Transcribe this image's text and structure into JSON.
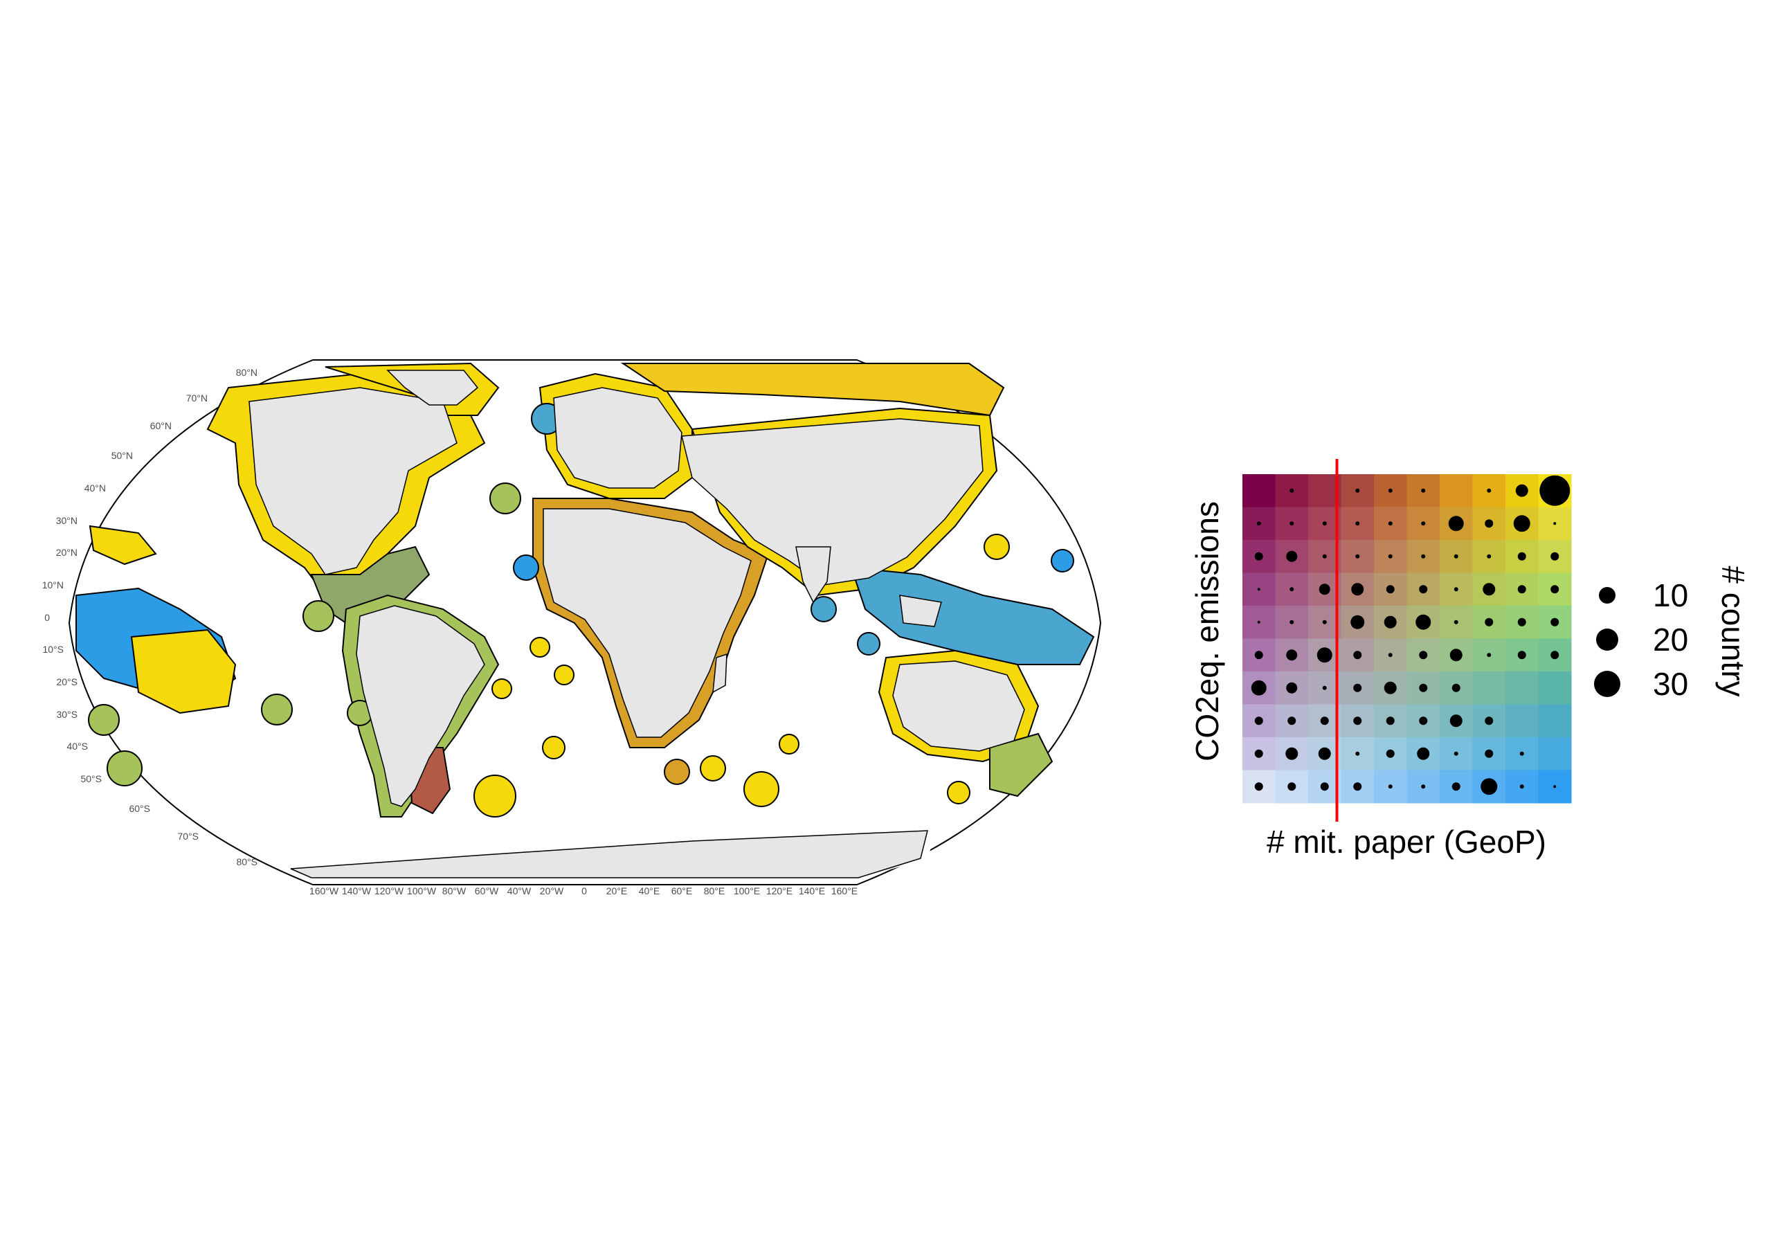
{
  "map": {
    "latitude_labels": [
      "80°N",
      "70°N",
      "60°N",
      "50°N",
      "40°N",
      "30°N",
      "20°N",
      "10°N",
      "0",
      "10°S",
      "20°S",
      "30°S",
      "40°S",
      "50°S",
      "60°S",
      "70°S",
      "80°S"
    ],
    "longitude_labels": [
      "160°W",
      "140°W",
      "120°W",
      "100°W",
      "80°W",
      "60°W",
      "40°W",
      "20°W",
      "0",
      "20°E",
      "40°E",
      "60°E",
      "80°E",
      "100°E",
      "120°E",
      "140°E",
      "160°E"
    ],
    "colors": {
      "land": "#e6e6e6",
      "coast_yellow": "#f5d90a",
      "coast_blue": "#2c9ce6",
      "coast_green": "#a6c25a",
      "coast_brown": "#b25a45"
    }
  },
  "legend": {
    "xlabel": "# mit. paper (GeoP)",
    "ylabel": "CO2eq. emissions",
    "size_title": "# country",
    "size_labels": [
      "10",
      "20",
      "30"
    ],
    "grid_colors": [
      [
        "#7b0048",
        "#8e1a48",
        "#9a2f45",
        "#a84a3e",
        "#bb6233",
        "#c8782a",
        "#d9951f",
        "#e6ae16",
        "#eccc10",
        "#f3e11c"
      ],
      [
        "#8a1a5a",
        "#9a2f5c",
        "#a8445a",
        "#b45a52",
        "#c07246",
        "#c9873c",
        "#d19d31",
        "#d8b42a",
        "#dcc728",
        "#e2da3a"
      ],
      [
        "#932f6d",
        "#a0456e",
        "#ab5a6c",
        "#b46e64",
        "#bc8458",
        "#c1984e",
        "#c5ac44",
        "#c8c03f",
        "#c8cf42",
        "#cbd84f"
      ],
      [
        "#994482",
        "#a45a82",
        "#ad6f80",
        "#b38378",
        "#b8966c",
        "#b9a863",
        "#b9ba5b",
        "#b6c858",
        "#b1d05d",
        "#add767"
      ],
      [
        "#a05b97",
        "#a86f96",
        "#ae8494",
        "#b0978c",
        "#b1a880",
        "#aeb678",
        "#a9c272",
        "#a1cb71",
        "#98cf76",
        "#90d27e"
      ],
      [
        "#a974ac",
        "#ad88ab",
        "#af9ca9",
        "#ad9ea2",
        "#aab098",
        "#a3bb91",
        "#99c28c",
        "#8dc68c",
        "#80c68f",
        "#74c494"
      ],
      [
        "#b08fbf",
        "#b1a1bd",
        "#afabbb",
        "#a6adb5",
        "#9eb4ad",
        "#93b8a7",
        "#86bba4",
        "#78bba4",
        "#69b8a6",
        "#5ab4a8"
      ],
      [
        "#bba8d2",
        "#b8b7d1",
        "#b1bfce",
        "#a5bec9",
        "#98bec4",
        "#8abec1",
        "#7bbbc0",
        "#6cb7c0",
        "#5db1c2",
        "#4eabc4"
      ],
      [
        "#c8c1e3",
        "#c2cbe4",
        "#b7cfe3",
        "#a8cde1",
        "#97c9df",
        "#87c5de",
        "#77bfdd",
        "#66b9dd",
        "#56b2de",
        "#47aadf"
      ],
      [
        "#d8e2f4",
        "#c8dcf4",
        "#b5d5f4",
        "#a2cef4",
        "#8ec7f3",
        "#7bbff2",
        "#68b7f1",
        "#55aff1",
        "#42a7f0",
        "#2f9ef0"
      ]
    ],
    "point_sizes": [
      [
        0,
        3,
        0,
        3,
        3,
        3,
        0,
        3,
        9,
        22
      ],
      [
        3,
        3,
        3,
        3,
        3,
        3,
        11,
        6,
        12,
        2
      ],
      [
        6,
        8,
        3,
        3,
        3,
        3,
        3,
        3,
        6,
        6
      ],
      [
        2,
        3,
        8,
        9,
        6,
        6,
        3,
        9,
        6,
        6
      ],
      [
        2,
        3,
        3,
        10,
        9,
        11,
        3,
        6,
        6,
        6
      ],
      [
        6,
        8,
        11,
        6,
        3,
        6,
        9,
        3,
        6,
        6
      ],
      [
        11,
        8,
        3,
        6,
        9,
        6,
        6,
        0,
        0,
        0
      ],
      [
        6,
        6,
        6,
        6,
        6,
        6,
        9,
        6,
        0,
        0
      ],
      [
        6,
        9,
        9,
        3,
        6,
        9,
        3,
        6,
        3,
        0
      ],
      [
        6,
        6,
        6,
        6,
        3,
        3,
        6,
        12,
        3,
        2
      ]
    ],
    "size_values": [
      10,
      20,
      30
    ],
    "divider_after_column": 3,
    "divider_color": "#ff0000"
  }
}
